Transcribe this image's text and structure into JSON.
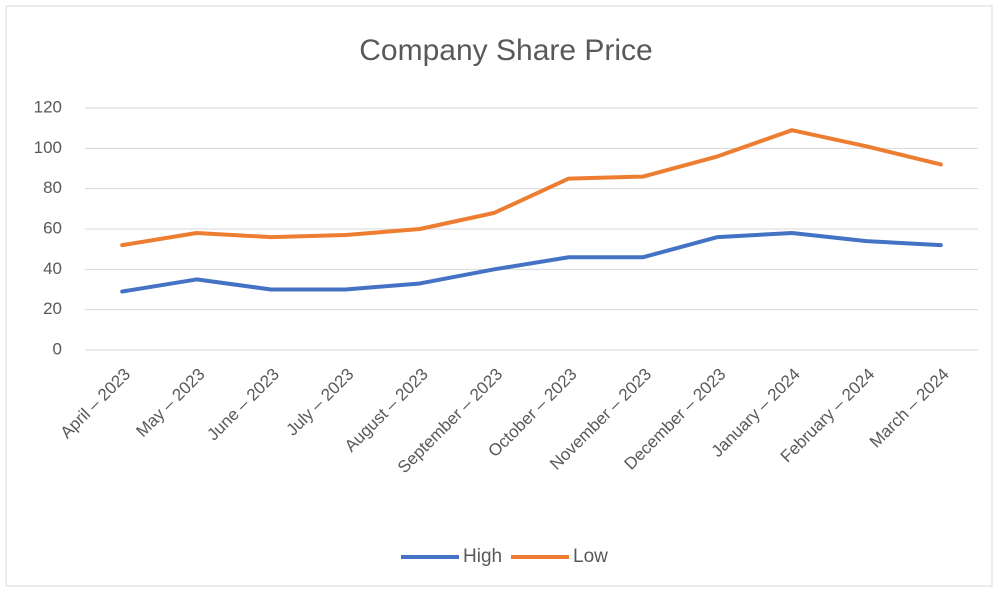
{
  "chart_data": {
    "type": "line",
    "title": "Company Share Price",
    "categories": [
      "April – 2023",
      "May – 2023",
      "June – 2023",
      "July – 2023",
      "August – 2023",
      "September – 2023",
      "October – 2023",
      "November – 2023",
      "December – 2023",
      "January – 2024",
      "February – 2024",
      "March – 2024"
    ],
    "series": [
      {
        "name": "High",
        "color": "#4472c4",
        "values": [
          29,
          35,
          30,
          30,
          33,
          40,
          46,
          46,
          56,
          58,
          54,
          52
        ]
      },
      {
        "name": "Low",
        "color": "#ed7d31",
        "values": [
          52,
          58,
          56,
          57,
          60,
          68,
          85,
          86,
          96,
          109,
          101,
          92
        ]
      }
    ],
    "ylim": [
      0,
      120
    ],
    "yticks": [
      0,
      20,
      40,
      60,
      80,
      100,
      120
    ],
    "grid": true,
    "legend": "bottom"
  }
}
